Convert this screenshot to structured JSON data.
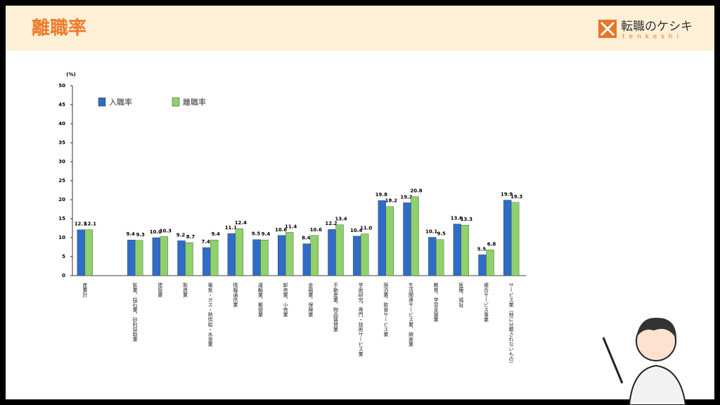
{
  "header": {
    "title": "離職率",
    "logo_text": "転職のケシキ",
    "logo_sub": "tenkeshi"
  },
  "chart_data": {
    "type": "bar",
    "y_label": "(%)",
    "categories": [
      "産業計",
      null,
      "鉱業，採石業，砂利採取業",
      "建設業",
      "製造業",
      "電気・ガス・熱供給・水道業",
      "情報通信業",
      "運輸業，郵便業",
      "卸売業，小売業",
      "金融業，保険業",
      "不動産業，物品賃貸業",
      "学術研究，専門・技術サービス業",
      "宿泊業，飲食サービス業",
      "生活関連サービス業，娯楽業",
      "教育，学習支援業",
      "医療，福祉",
      "複合サービス事業",
      "サービス業（他に分類されないもの）"
    ],
    "series": [
      {
        "name": "入職率",
        "color": "#2f6cc8",
        "values": [
          12.1,
          null,
          9.4,
          10.0,
          9.2,
          7.4,
          11.1,
          9.5,
          10.6,
          8.4,
          12.2,
          10.4,
          19.8,
          19.2,
          10.1,
          13.6,
          5.5,
          19.9
        ],
        "value_labels": [
          "12.1",
          null,
          "9.4",
          "10.0",
          "9.2",
          "7.4",
          "11.1",
          "9.5",
          "10.6",
          "8.4",
          "12.2",
          "10.4",
          "19.8",
          "19.2",
          "10.1",
          "13.6",
          "5.5",
          "19.9"
        ]
      },
      {
        "name": "離職率",
        "color": "#8fd16a",
        "values": [
          12.1,
          null,
          9.3,
          10.3,
          8.7,
          9.4,
          12.4,
          9.4,
          11.4,
          10.6,
          13.4,
          11.0,
          18.2,
          20.8,
          9.5,
          13.3,
          6.8,
          19.3
        ],
        "value_labels": [
          "12.1",
          null,
          "9.3",
          "10.3",
          "8.7",
          "9.4",
          "12.4",
          "9.4",
          "11.4",
          "10.6",
          "13.4",
          "11.0",
          "18.2",
          "20.8",
          "9.5",
          "13.3",
          "6.8",
          "19.3"
        ]
      }
    ],
    "ylim": [
      0,
      50
    ],
    "yticks": [
      0,
      5,
      10,
      15,
      20,
      25,
      30,
      35,
      40,
      45,
      50
    ],
    "grid": false,
    "legend": "top-left"
  }
}
